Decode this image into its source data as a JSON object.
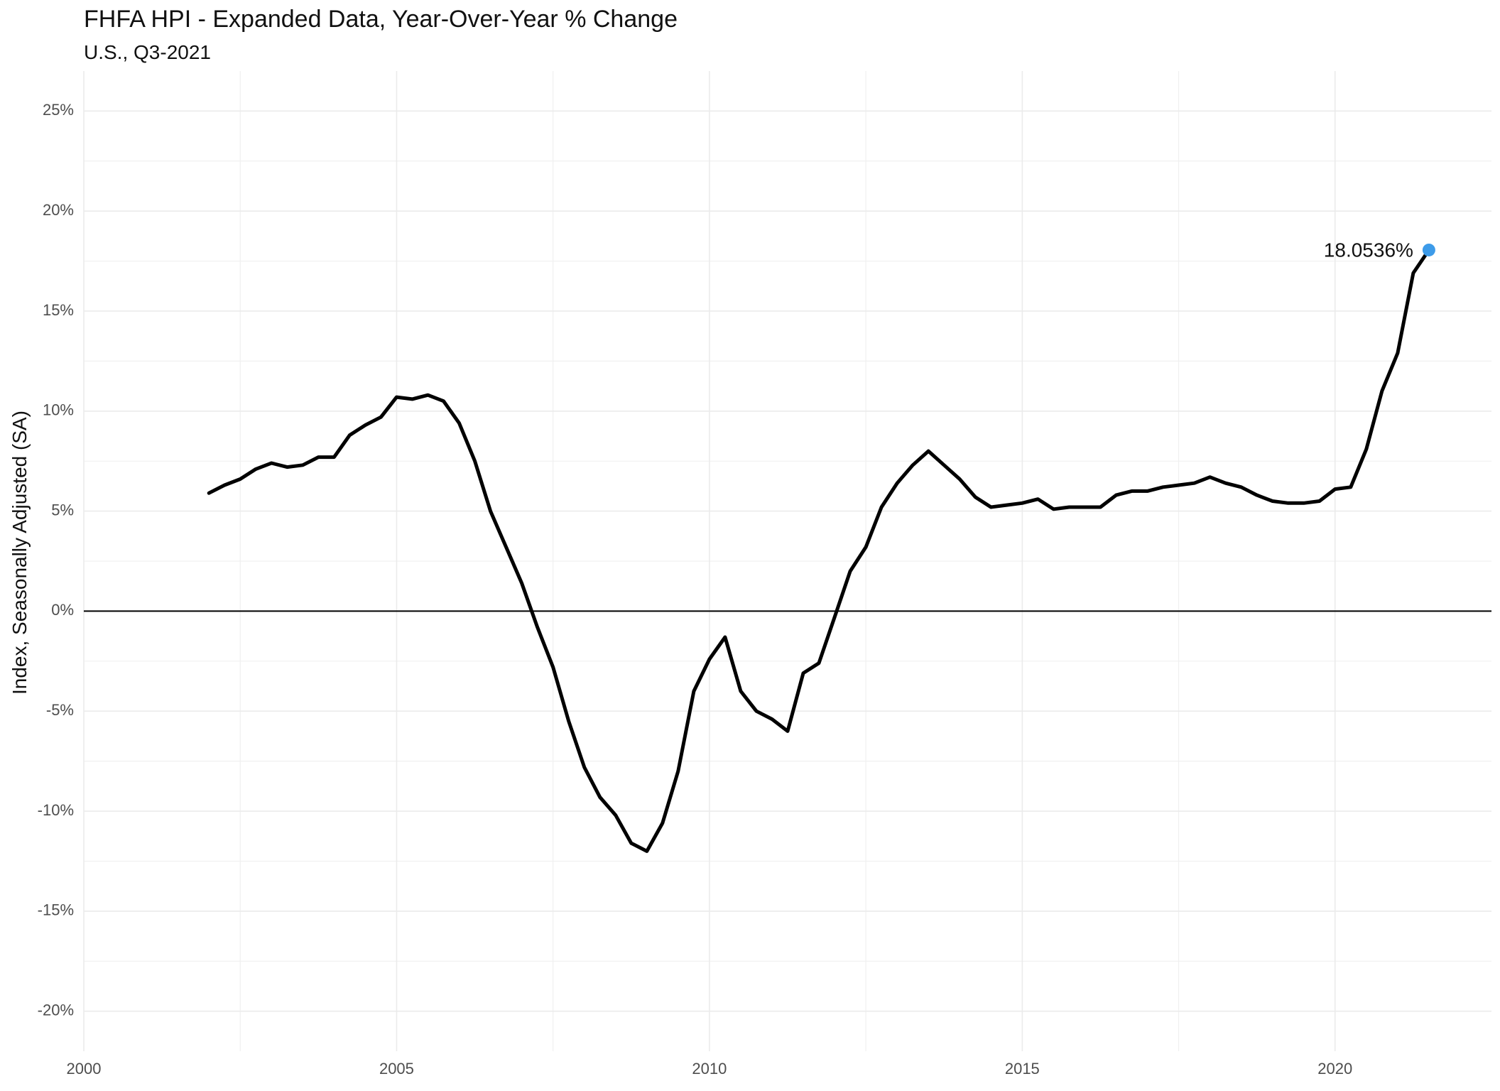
{
  "chart_data": {
    "type": "line",
    "title": "FHFA HPI - Expanded Data, Year-Over-Year % Change",
    "subtitle": "U.S., Q3-2021",
    "xlabel": "",
    "ylabel": "Index, Seasonally Adjusted (SA)",
    "xlim": [
      2000,
      2022.5
    ],
    "ylim": [
      -22,
      27
    ],
    "x_ticks": [
      2000,
      2005,
      2010,
      2015,
      2020
    ],
    "x_tick_labels": [
      "2000",
      "2005",
      "2010",
      "2015",
      "2020"
    ],
    "y_ticks": [
      -20,
      -15,
      -10,
      -5,
      0,
      5,
      10,
      15,
      20,
      25
    ],
    "y_tick_labels": [
      "-20%",
      "-15%",
      "-10%",
      "-5%",
      "0%",
      "5%",
      "10%",
      "15%",
      "20%",
      "25%"
    ],
    "grid": true,
    "zero_line": true,
    "line_color": "#000000",
    "highlight_color": "#3d9be9",
    "annotation": {
      "text": "18.0536%",
      "x": 2021.5,
      "y": 18.0536
    },
    "series": [
      {
        "x": [
          2002.0,
          2002.25,
          2002.5,
          2002.75,
          2003.0,
          2003.25,
          2003.5,
          2003.75,
          2004.0,
          2004.25,
          2004.5,
          2004.75,
          2005.0,
          2005.25,
          2005.5,
          2005.75,
          2006.0,
          2006.25,
          2006.5,
          2006.75,
          2007.0,
          2007.25,
          2007.5,
          2007.75,
          2008.0,
          2008.25,
          2008.5,
          2008.75,
          2009.0,
          2009.25,
          2009.5,
          2009.75,
          2010.0,
          2010.25,
          2010.5,
          2010.75,
          2011.0,
          2011.25,
          2011.5,
          2011.75,
          2012.0,
          2012.25,
          2012.5,
          2012.75,
          2013.0,
          2013.25,
          2013.5,
          2013.75,
          2014.0,
          2014.25,
          2014.5,
          2014.75,
          2015.0,
          2015.25,
          2015.5,
          2015.75,
          2016.0,
          2016.25,
          2016.5,
          2016.75,
          2017.0,
          2017.25,
          2017.5,
          2017.75,
          2018.0,
          2018.25,
          2018.5,
          2018.75,
          2019.0,
          2019.25,
          2019.5,
          2019.75,
          2020.0,
          2020.25,
          2020.5,
          2020.75,
          2021.0,
          2021.25,
          2021.5
        ],
        "values": [
          5.9,
          6.3,
          6.6,
          7.1,
          7.4,
          7.2,
          7.3,
          7.7,
          7.7,
          8.8,
          9.3,
          9.7,
          10.7,
          10.6,
          10.8,
          10.5,
          9.4,
          7.5,
          5.0,
          3.2,
          1.4,
          -0.8,
          -2.8,
          -5.5,
          -7.8,
          -9.3,
          -10.2,
          -11.6,
          -12.0,
          -10.6,
          -8.0,
          -4.0,
          -2.4,
          -1.3,
          -4.0,
          -5.0,
          -5.4,
          -6.0,
          -3.1,
          -2.6,
          -0.3,
          2.0,
          3.2,
          5.2,
          6.4,
          7.3,
          8.0,
          7.3,
          6.6,
          5.7,
          5.2,
          5.3,
          5.4,
          5.6,
          5.1,
          5.2,
          5.2,
          5.2,
          5.8,
          6.0,
          6.0,
          6.2,
          6.3,
          6.4,
          6.7,
          6.4,
          6.2,
          5.8,
          5.5,
          5.4,
          5.4,
          5.5,
          6.1,
          6.2,
          8.1,
          11.0,
          12.9,
          16.9,
          18.0536
        ]
      }
    ]
  }
}
